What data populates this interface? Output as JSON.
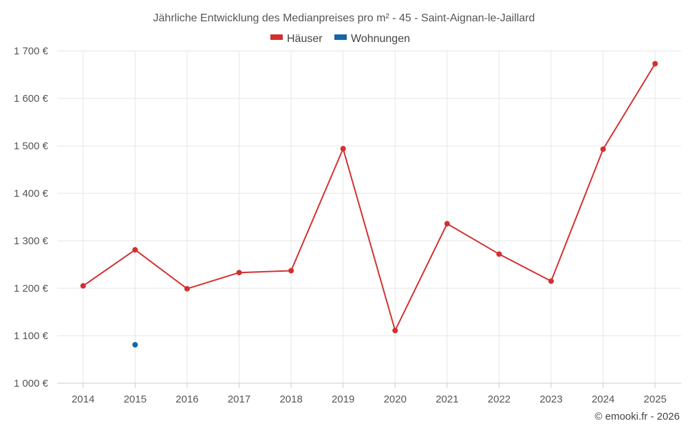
{
  "chart_data": {
    "type": "line",
    "title": "Jährliche Entwicklung des Medianpreises pro m² - 45 - Saint-Aignan-le-Jaillard",
    "categories": [
      "2014",
      "2015",
      "2016",
      "2017",
      "2018",
      "2019",
      "2020",
      "2021",
      "2022",
      "2023",
      "2024",
      "2025"
    ],
    "series": [
      {
        "name": "Häuser",
        "color": "#d32f2f",
        "values": [
          1205,
          1281,
          1199,
          1233,
          1237,
          1494,
          1111,
          1336,
          1272,
          1215,
          1493,
          1673
        ]
      },
      {
        "name": "Wohnungen",
        "color": "#1565a7",
        "values": [
          null,
          1081,
          null,
          null,
          null,
          null,
          null,
          null,
          null,
          null,
          null,
          null
        ]
      }
    ],
    "y_ticks": [
      1000,
      1100,
      1200,
      1300,
      1400,
      1500,
      1600,
      1700
    ],
    "y_tick_labels": [
      "1 000 €",
      "1 100 €",
      "1 200 €",
      "1 300 €",
      "1 400 €",
      "1 500 €",
      "1 600 €",
      "1 700 €"
    ],
    "ylim": [
      1000,
      1700
    ],
    "xlabel": "",
    "ylabel": "",
    "legend_position": "top-center",
    "grid": true
  },
  "credit": "© emooki.fr - 2026"
}
